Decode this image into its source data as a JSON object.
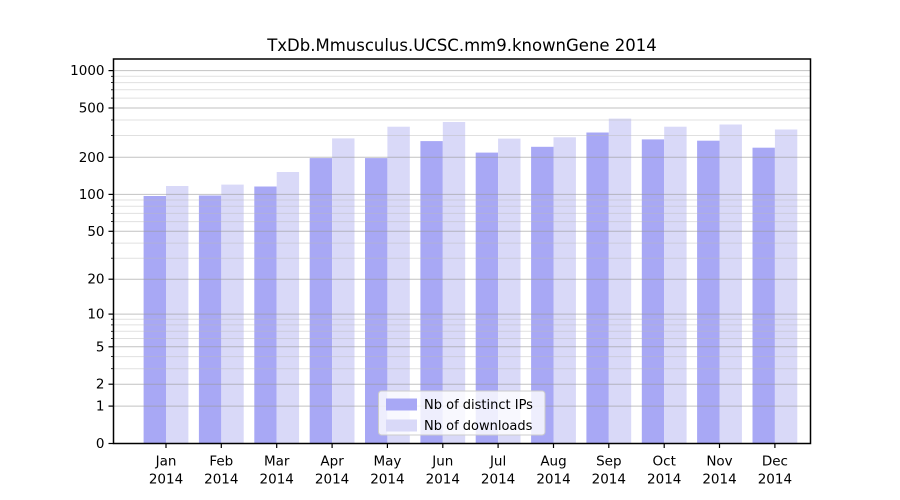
{
  "title": "TxDb.Mmusculus.UCSC.mm9.knownGene 2014",
  "chart_data": {
    "type": "bar",
    "title": "TxDb.Mmusculus.UCSC.mm9.knownGene 2014",
    "xlabel": "",
    "ylabel": "",
    "scale": "log1p",
    "grid": true,
    "legend_position": "bottom-center",
    "categories": [
      "Jan",
      "Feb",
      "Mar",
      "Apr",
      "May",
      "Jun",
      "Jul",
      "Aug",
      "Sep",
      "Oct",
      "Nov",
      "Dec"
    ],
    "year_label": "2014",
    "series": [
      {
        "name": "Nb of distinct IPs",
        "color": "#a8a8f5",
        "values": [
          97,
          98,
          116,
          197,
          197,
          270,
          218,
          243,
          317,
          279,
          272,
          239
        ]
      },
      {
        "name": "Nb of downloads",
        "color": "#d9d9f8",
        "values": [
          117,
          120,
          152,
          284,
          353,
          385,
          283,
          290,
          410,
          353,
          368,
          335
        ]
      }
    ],
    "y_ticks": [
      0,
      1,
      2,
      5,
      10,
      20,
      50,
      100,
      200,
      500,
      1000
    ],
    "y_minor_ticks": [
      3,
      4,
      6,
      7,
      8,
      9,
      30,
      40,
      60,
      70,
      80,
      90,
      300,
      400,
      600,
      700,
      800,
      900
    ],
    "ylim": [
      0,
      1100
    ]
  },
  "style_colors": {
    "major_grid": "#9a9a9a",
    "minor_grid": "#bbbbbb",
    "spine": "#000000",
    "legend_border": "#cccccc"
  }
}
